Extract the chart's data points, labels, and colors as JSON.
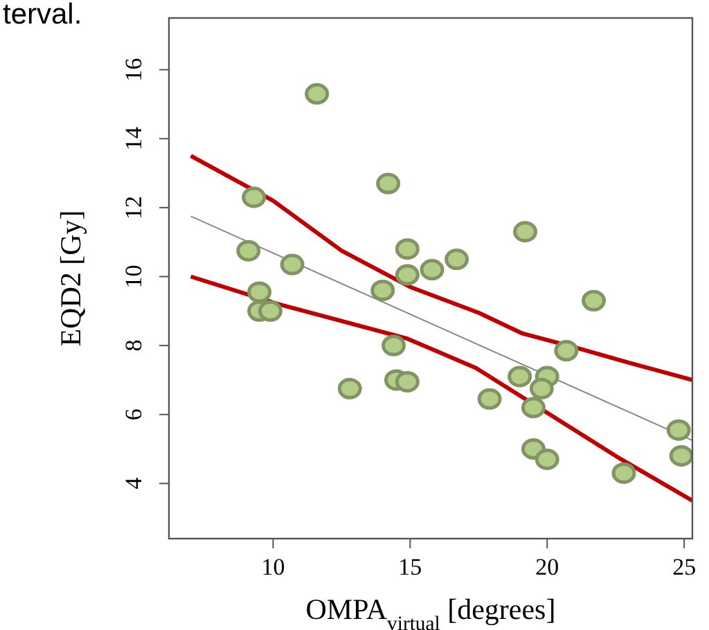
{
  "chart_data": {
    "type": "scatter",
    "xlabel": "OMPA$_{virtual}$ [degrees]",
    "ylabel": "EQD2 [Gy]",
    "annotations": [
      "terval."
    ],
    "xlim": [
      6.2,
      25.3
    ],
    "ylim": [
      2.4,
      17.5
    ],
    "xticks": [
      10,
      15,
      20,
      25
    ],
    "yticks": [
      4,
      6,
      8,
      10,
      12,
      14,
      16
    ],
    "grid": false,
    "series": [
      {
        "marker": "circle",
        "color": "#b3cc88",
        "x": [
          11.6,
          9.3,
          14.2,
          19.2,
          9.1,
          10.7,
          14.9,
          14.9,
          15.8,
          16.7,
          14.0,
          9.5,
          21.7,
          9.5,
          9.9,
          14.4,
          20.7,
          14.5,
          14.9,
          12.8,
          19.0,
          20.0,
          19.8,
          17.9,
          19.5,
          19.5,
          20.0,
          22.8,
          24.8,
          24.9
        ],
        "values": [
          15.3,
          12.3,
          12.7,
          11.3,
          10.75,
          10.35,
          10.8,
          10.05,
          10.2,
          10.5,
          9.6,
          9.55,
          9.3,
          9.0,
          9.0,
          8.0,
          7.85,
          7.0,
          6.95,
          6.75,
          7.1,
          7.1,
          6.75,
          6.45,
          6.2,
          5.0,
          4.7,
          4.3,
          5.55,
          4.8
        ]
      },
      {
        "type": "line",
        "color": "#888888",
        "x": [
          7,
          25.3
        ],
        "values": [
          11.75,
          5.25
        ]
      },
      {
        "type": "line",
        "color": "#c00000",
        "x": [
          7,
          10,
          12.5,
          15,
          17.5,
          19.1,
          21,
          23,
          25.3
        ],
        "values": [
          13.5,
          12.2,
          10.75,
          9.7,
          8.95,
          8.35,
          7.95,
          7.5,
          7.0
        ]
      },
      {
        "type": "line",
        "color": "#c00000",
        "x": [
          7,
          10.2,
          14.9,
          17.4,
          19.8,
          22.7,
          25.3
        ],
        "values": [
          10.0,
          9.2,
          8.2,
          7.35,
          6.15,
          4.7,
          3.5
        ]
      }
    ]
  }
}
